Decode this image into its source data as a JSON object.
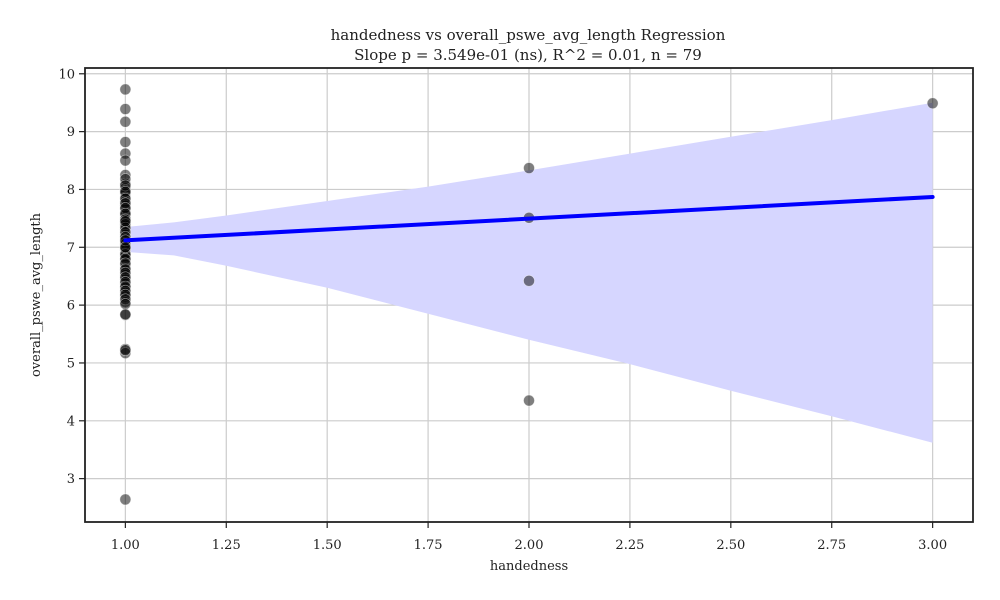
{
  "chart_data": {
    "type": "scatter",
    "title": "handedness vs overall_pswe_avg_length Regression",
    "subtitle": "Slope p = 3.549e-01 (ns), R^2 = 0.01, n = 79",
    "xlabel": "handedness",
    "ylabel": "overall_pswe_avg_length",
    "xlim": [
      0.9,
      3.1
    ],
    "ylim": [
      2.25,
      10.1
    ],
    "x_ticks": [
      "1.00",
      "1.25",
      "1.50",
      "1.75",
      "2.00",
      "2.25",
      "2.50",
      "2.75",
      "3.00"
    ],
    "y_ticks": [
      "3",
      "4",
      "5",
      "6",
      "7",
      "8",
      "9",
      "10"
    ],
    "grid": true,
    "colors": {
      "points": "#000000",
      "regression_line": "#0000ff",
      "ci_band": "#d6d6ff"
    },
    "points": {
      "x": [
        1,
        1,
        1,
        1,
        1,
        1,
        1,
        1,
        1,
        1,
        1,
        1,
        1,
        1,
        1,
        1,
        1,
        1,
        1,
        1,
        1,
        1,
        1,
        1,
        1,
        1,
        1,
        1,
        1,
        1,
        1,
        1,
        1,
        1,
        1,
        1,
        1,
        1,
        1,
        1,
        1,
        1,
        1,
        1,
        1,
        1,
        1,
        1,
        1,
        1,
        1,
        1,
        1,
        1,
        1,
        1,
        1,
        1,
        1,
        1,
        1,
        1,
        1,
        1,
        1,
        1,
        1,
        1,
        1,
        1,
        1,
        1,
        1,
        1,
        2,
        2,
        2,
        2,
        3
      ],
      "y": [
        9.73,
        9.39,
        9.17,
        8.82,
        8.62,
        8.5,
        8.25,
        8.1,
        8.02,
        7.98,
        7.93,
        7.86,
        7.79,
        7.72,
        7.66,
        7.6,
        7.55,
        7.5,
        7.43,
        7.37,
        7.3,
        7.22,
        7.15,
        7.1,
        7.03,
        6.95,
        6.9,
        6.85,
        6.78,
        6.7,
        6.65,
        6.6,
        6.52,
        6.45,
        6.37,
        6.3,
        6.22,
        6.15,
        6.05,
        5.83,
        5.24,
        5.17,
        2.64,
        8.18,
        8.07,
        7.96,
        7.84,
        7.76,
        7.68,
        7.58,
        7.48,
        7.4,
        7.34,
        7.26,
        7.18,
        7.06,
        6.98,
        6.88,
        6.8,
        6.72,
        6.62,
        6.56,
        6.48,
        6.4,
        6.32,
        6.25,
        6.18,
        6.1,
        6.02,
        5.84,
        5.22,
        7.12,
        7.45,
        7.0,
        8.37,
        7.51,
        6.42,
        4.35,
        9.49
      ]
    },
    "regression": {
      "x": [
        1,
        3
      ],
      "y": [
        7.12,
        7.87
      ]
    },
    "ci_band": {
      "x": [
        1.0,
        1.12,
        1.25,
        1.5,
        1.75,
        2.0,
        2.25,
        2.5,
        2.75,
        3.0
      ],
      "lower": [
        6.92,
        6.86,
        6.68,
        6.3,
        5.85,
        5.4,
        4.98,
        4.52,
        4.08,
        3.62
      ],
      "upper": [
        7.35,
        7.43,
        7.55,
        7.8,
        8.05,
        8.33,
        8.62,
        8.91,
        9.2,
        9.5
      ]
    }
  }
}
